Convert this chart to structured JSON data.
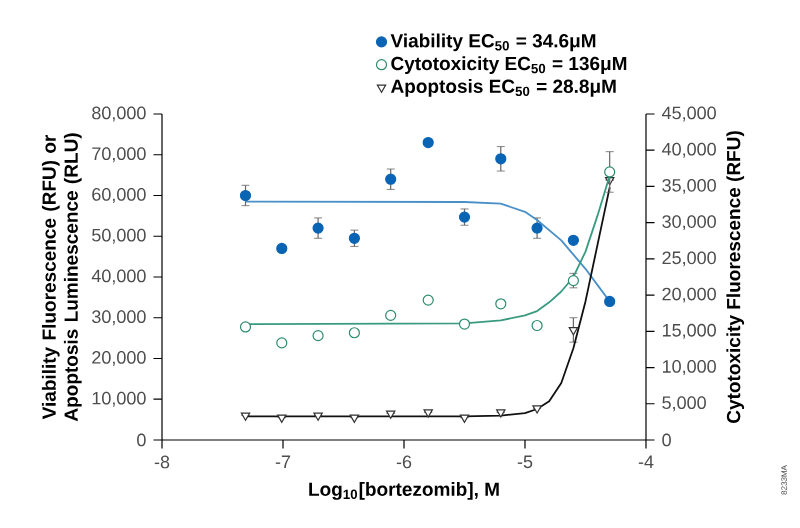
{
  "chart_data": {
    "type": "scatter",
    "xlabel": "Log$_{10}$[bortezomib], M",
    "ylabel": "Viability Fluorescence (RFU) or Apoptosis Luminescence (RLU)",
    "y2label": "Cytotoxicity Fluorescence (RFU)",
    "xlim": [
      -8,
      -4
    ],
    "xticks": [
      -8,
      -7,
      -6,
      -5,
      -4
    ],
    "ylim": [
      0,
      80000
    ],
    "yticks": [
      0,
      {
        "value": 10000,
        "label": "10,000"
      },
      {
        "value": 20000,
        "label": "20,000"
      },
      {
        "value": 30000,
        "label": "30,000"
      },
      {
        "value": 40000,
        "label": "40,000"
      },
      {
        "value": 50000,
        "label": "50,000"
      },
      {
        "value": 60000,
        "label": "60,000"
      },
      {
        "value": 70000,
        "label": "70,000"
      },
      {
        "value": 80000,
        "label": "80,000"
      }
    ],
    "y2lim": [
      0,
      45000
    ],
    "y2ticks": [
      0,
      {
        "value": 5000,
        "label": "5,000"
      },
      {
        "value": 10000,
        "label": "10,000"
      },
      {
        "value": 15000,
        "label": "15,000"
      },
      {
        "value": 20000,
        "label": "20,000"
      },
      {
        "value": 25000,
        "label": "25,000"
      },
      {
        "value": 30000,
        "label": "30,000"
      },
      {
        "value": 35000,
        "label": "35,000"
      },
      {
        "value": 40000,
        "label": "40,000"
      },
      {
        "value": 45000,
        "label": "45,000"
      }
    ],
    "legend": "top",
    "annotations": [
      "8233MA"
    ],
    "series": [
      {
        "name": "Viability EC$_{50}$ = 34.6μM",
        "color": "#0a64b4",
        "marker": "circle",
        "x": [
          -7.31,
          -7.01,
          -6.71,
          -6.41,
          -6.11,
          -5.8,
          -5.5,
          -5.2,
          -4.9,
          -4.6,
          -4.3
        ],
        "values": [
          60000,
          47000,
          52000,
          49500,
          64000,
          73000,
          54700,
          69000,
          52000,
          49000,
          34000
        ],
        "errors": [
          2500,
          null,
          2500,
          2000,
          2500,
          null,
          2000,
          3000,
          2500,
          null,
          null
        ]
      },
      {
        "name": "Cytotoxicity EC$_{50}$ = 136μM",
        "color": "#2e8b6e",
        "marker": "circle",
        "axis": "y2",
        "x": [
          -7.31,
          -7.01,
          -6.71,
          -6.41,
          -6.11,
          -5.8,
          -5.5,
          -5.2,
          -4.9,
          -4.6,
          -4.3
        ],
        "values": [
          15600,
          13400,
          14400,
          14800,
          17200,
          19300,
          16000,
          18800,
          15800,
          22000,
          37000
        ],
        "errors": [
          null,
          null,
          null,
          null,
          null,
          null,
          null,
          null,
          null,
          1000,
          2800
        ]
      },
      {
        "name": "Apoptosis EC$_{50}$ = 28.8μM",
        "color": "#333333",
        "marker": "triangle",
        "x": [
          -7.31,
          -7.01,
          -6.71,
          -6.41,
          -6.11,
          -5.8,
          -5.5,
          -5.2,
          -4.9,
          -4.6,
          -4.3
        ],
        "values": [
          6000,
          5500,
          6000,
          5500,
          6500,
          6800,
          5500,
          6800,
          7800,
          27000,
          63800
        ],
        "errors": [
          null,
          null,
          null,
          null,
          null,
          null,
          null,
          null,
          null,
          3000,
          null
        ]
      },
      {
        "type": "line",
        "color": "#4a90c8",
        "marker": "none",
        "x": [
          -7.31,
          -5.5,
          -5.2,
          -5.0,
          -4.9,
          -4.8,
          -4.7,
          -4.6,
          -4.5,
          -4.4,
          -4.3
        ],
        "values": [
          58500,
          58400,
          58000,
          56000,
          54000,
          51500,
          49000,
          45500,
          42000,
          38000,
          34000
        ]
      },
      {
        "type": "line",
        "color": "#3a9a80",
        "marker": "none",
        "axis": "y2",
        "x": [
          -7.31,
          -5.5,
          -5.2,
          -5.0,
          -4.9,
          -4.8,
          -4.7,
          -4.6,
          -4.5,
          -4.4,
          -4.3
        ],
        "values": [
          16000,
          16100,
          16500,
          17200,
          17800,
          19000,
          20500,
          22500,
          26000,
          31000,
          36500
        ]
      },
      {
        "type": "line",
        "color": "#111111",
        "marker": "none",
        "x": [
          -7.31,
          -5.5,
          -5.2,
          -5.0,
          -4.9,
          -4.8,
          -4.7,
          -4.6,
          -4.5,
          -4.4,
          -4.3
        ],
        "values": [
          5800,
          5800,
          6000,
          6600,
          7600,
          9500,
          14000,
          22500,
          34000,
          48000,
          62000
        ]
      }
    ]
  }
}
